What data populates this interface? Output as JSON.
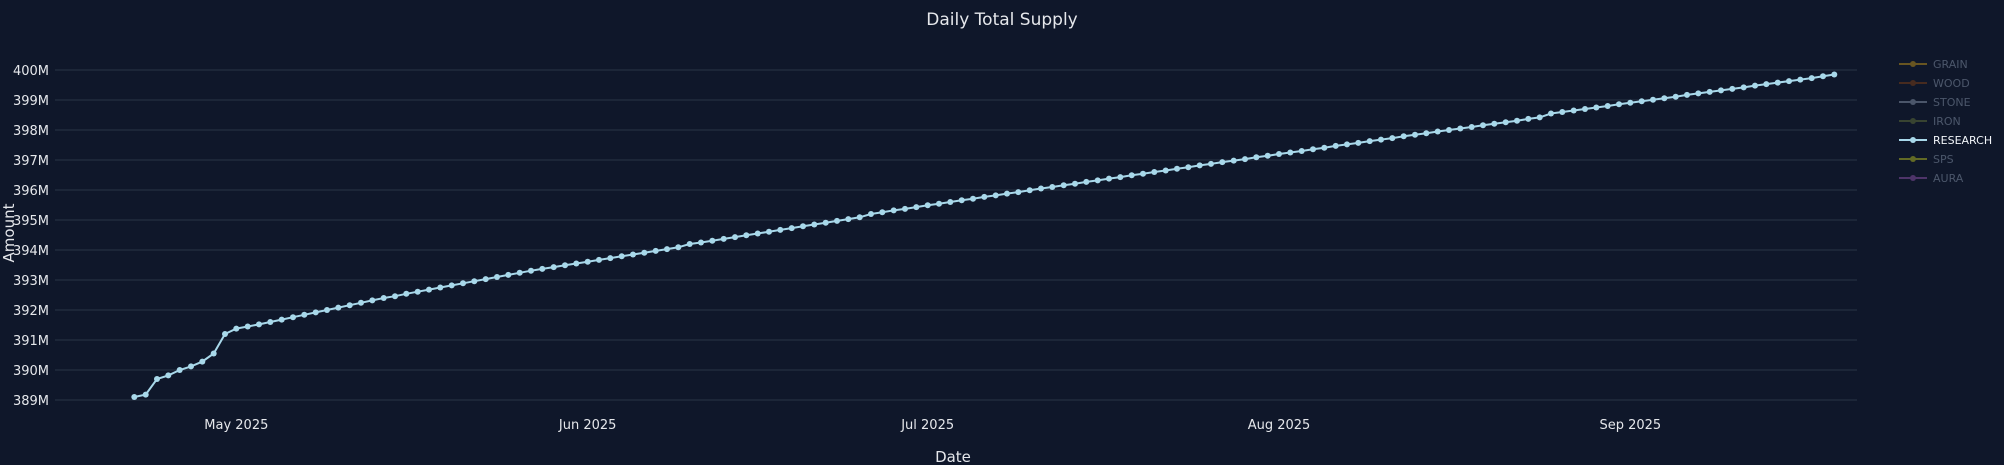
{
  "chart_data": {
    "type": "line",
    "title": "Daily Total Supply",
    "xlabel": "Date",
    "ylabel": "Amount",
    "x_start": "2025-04-22",
    "x_end": "2025-09-11",
    "xlim": [
      "2025-04-15",
      "2025-09-21"
    ],
    "ylim": [
      388.6,
      400.6
    ],
    "y_unit_suffix": "M",
    "grid": true,
    "legend_position": "top-right",
    "y_ticks": [
      389,
      390,
      391,
      392,
      393,
      394,
      395,
      396,
      397,
      398,
      399,
      400
    ],
    "y_tick_labels": [
      "389M",
      "390M",
      "391M",
      "392M",
      "393M",
      "394M",
      "395M",
      "396M",
      "397M",
      "398M",
      "399M",
      "400M"
    ],
    "x_ticks": [
      "2025-05-01",
      "2025-06-01",
      "2025-07-01",
      "2025-08-01",
      "2025-09-01"
    ],
    "x_tick_labels": [
      "May 2025",
      "Jun 2025",
      "Jul 2025",
      "Aug 2025",
      "Sep 2025"
    ],
    "legend": [
      {
        "name": "GRAIN",
        "color": "#d4a017",
        "visible": false
      },
      {
        "name": "WOOD",
        "color": "#8b4513",
        "visible": false
      },
      {
        "name": "STONE",
        "color": "#94a3b8",
        "visible": false
      },
      {
        "name": "IRON",
        "color": "#6b7c3a",
        "visible": false
      },
      {
        "name": "RESEARCH",
        "color": "#a8d8ea",
        "visible": true
      },
      {
        "name": "SPS",
        "color": "#c8d020",
        "visible": false
      },
      {
        "name": "AURA",
        "color": "#9b59b6",
        "visible": false
      }
    ],
    "series": [
      {
        "name": "RESEARCH",
        "color": "#a8d8ea",
        "values": [
          389.1,
          389.18,
          389.7,
          389.82,
          390.0,
          390.12,
          390.28,
          390.55,
          391.2,
          391.38,
          391.45,
          391.52,
          391.6,
          391.68,
          391.76,
          391.84,
          391.92,
          392.0,
          392.08,
          392.16,
          392.24,
          392.32,
          392.4,
          392.46,
          392.54,
          392.61,
          392.68,
          392.75,
          392.82,
          392.89,
          392.96,
          393.03,
          393.1,
          393.17,
          393.24,
          393.31,
          393.37,
          393.43,
          393.49,
          393.55,
          393.61,
          393.67,
          393.73,
          393.79,
          393.85,
          393.91,
          393.97,
          394.03,
          394.09,
          394.2,
          394.25,
          394.31,
          394.37,
          394.43,
          394.49,
          394.55,
          394.61,
          394.67,
          394.73,
          394.79,
          394.85,
          394.91,
          394.97,
          395.03,
          395.09,
          395.2,
          395.26,
          395.32,
          395.37,
          395.43,
          395.49,
          395.54,
          395.6,
          395.66,
          395.71,
          395.77,
          395.82,
          395.88,
          395.93,
          395.99,
          396.05,
          396.1,
          396.16,
          396.21,
          396.27,
          396.32,
          396.38,
          396.43,
          396.49,
          396.54,
          396.6,
          396.65,
          396.71,
          396.76,
          396.82,
          396.87,
          396.93,
          396.98,
          397.03,
          397.09,
          397.14,
          397.2,
          397.25,
          397.3,
          397.36,
          397.41,
          397.47,
          397.52,
          397.57,
          397.63,
          397.68,
          397.73,
          397.79,
          397.84,
          397.89,
          397.95,
          398.0,
          398.05,
          398.1,
          398.16,
          398.21,
          398.26,
          398.31,
          398.37,
          398.42,
          398.55,
          398.6,
          398.65,
          398.7,
          398.75,
          398.8,
          398.86,
          398.91,
          398.96,
          399.01,
          399.06,
          399.11,
          399.17,
          399.22,
          399.27,
          399.32,
          399.37,
          399.42,
          399.48,
          399.53,
          399.58,
          399.63,
          399.68,
          399.73,
          399.79,
          399.85
        ]
      }
    ]
  }
}
